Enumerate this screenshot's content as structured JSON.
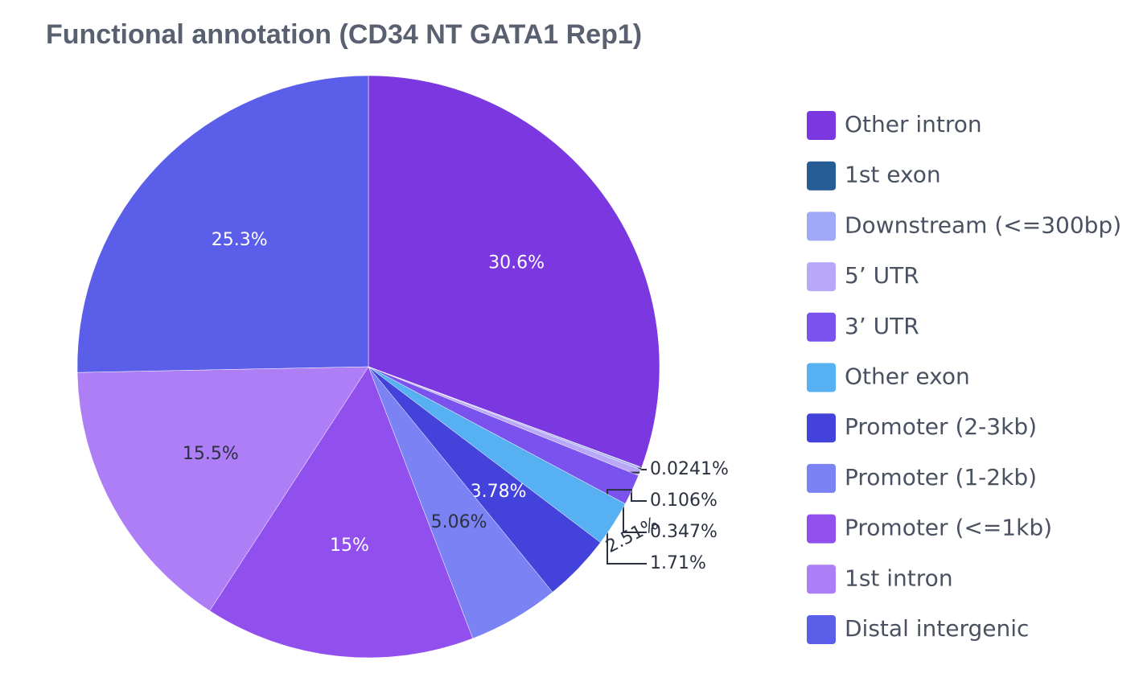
{
  "chart_data": {
    "type": "pie",
    "title": "Functional annotation (CD34 NT GATA1 Rep1)",
    "categories": [
      "Other intron",
      "1st exon",
      "Downstream (<=300bp)",
      "5’ UTR",
      "3’ UTR",
      "Other exon",
      "Promoter (2-3kb)",
      "Promoter (1-2kb)",
      "Promoter (<=1kb)",
      "1st intron",
      "Distal intergenic"
    ],
    "values": [
      30.6,
      0.0241,
      0.106,
      0.347,
      1.71,
      2.51,
      3.78,
      5.06,
      15,
      15.5,
      25.3
    ],
    "value_labels": [
      "30.6%",
      "0.0241%",
      "0.106%",
      "0.347%",
      "1.71%",
      "2.51%",
      "3.78%",
      "5.06%",
      "15%",
      "15.5%",
      "25.3%"
    ],
    "colors": [
      "#7b37e0",
      "#275d95",
      "#a0a8f8",
      "#b9a8f8",
      "#7a52ee",
      "#56b0f2",
      "#4343dc",
      "#7b82f3",
      "#9150ee",
      "#ad7ef5",
      "#5a5ee8"
    ],
    "legend": "right"
  }
}
